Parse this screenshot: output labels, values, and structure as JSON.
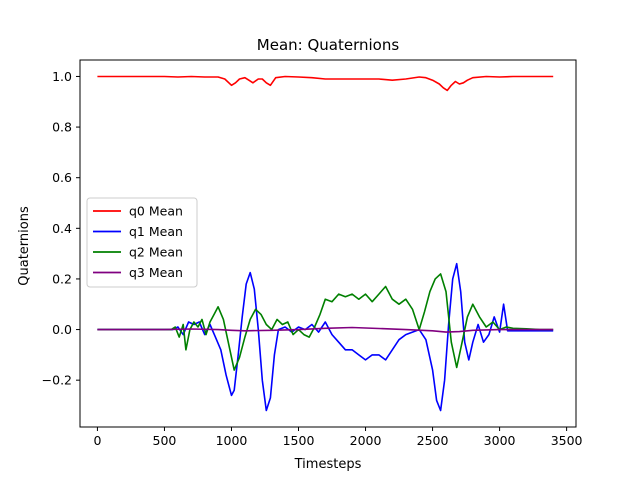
{
  "chart_data": {
    "type": "line",
    "title": "Mean: Quaternions",
    "xlabel": "Timesteps",
    "ylabel": "Quaternions",
    "xlim": [
      -130,
      3570
    ],
    "ylim": [
      -0.385,
      1.065
    ],
    "xticks": [
      0,
      500,
      1000,
      1500,
      2000,
      2500,
      3000,
      3500
    ],
    "yticks": [
      -0.2,
      0.0,
      0.2,
      0.4,
      0.6,
      0.8,
      1.0
    ],
    "xtick_labels": [
      "0",
      "500",
      "1000",
      "1500",
      "2000",
      "2500",
      "3000",
      "3500"
    ],
    "ytick_labels": [
      "−0.2",
      "0.0",
      "0.2",
      "0.4",
      "0.6",
      "0.8",
      "1.0"
    ],
    "grid": false,
    "legend_position": "center-left",
    "series": [
      {
        "name": "q0 Mean",
        "color": "#ff0000",
        "x": [
          0,
          500,
          600,
          700,
          800,
          900,
          950,
          1000,
          1030,
          1060,
          1100,
          1130,
          1160,
          1200,
          1230,
          1260,
          1290,
          1330,
          1400,
          1500,
          1600,
          1700,
          1800,
          1900,
          2000,
          2100,
          2200,
          2300,
          2400,
          2450,
          2500,
          2550,
          2580,
          2610,
          2640,
          2670,
          2700,
          2730,
          2760,
          2800,
          2900,
          3000,
          3100,
          3200,
          3300,
          3400
        ],
        "values": [
          1.0,
          1.0,
          0.998,
          1.0,
          0.998,
          0.998,
          0.99,
          0.965,
          0.975,
          0.99,
          0.995,
          0.985,
          0.975,
          0.99,
          0.99,
          0.975,
          0.965,
          0.995,
          1.0,
          0.998,
          0.995,
          0.99,
          0.99,
          0.99,
          0.99,
          0.99,
          0.985,
          0.99,
          0.998,
          0.995,
          0.985,
          0.97,
          0.955,
          0.945,
          0.965,
          0.98,
          0.97,
          0.975,
          0.985,
          0.995,
          1.0,
          0.998,
          1.0,
          1.0,
          1.0,
          1.0
        ]
      },
      {
        "name": "q1 Mean",
        "color": "#0000ff",
        "x": [
          0,
          300,
          560,
          600,
          640,
          680,
          720,
          760,
          800,
          840,
          880,
          920,
          960,
          1000,
          1020,
          1050,
          1080,
          1110,
          1140,
          1170,
          1200,
          1230,
          1260,
          1290,
          1320,
          1350,
          1400,
          1450,
          1500,
          1550,
          1600,
          1650,
          1700,
          1750,
          1800,
          1850,
          1900,
          1950,
          2000,
          2050,
          2100,
          2150,
          2200,
          2250,
          2300,
          2350,
          2400,
          2450,
          2500,
          2530,
          2560,
          2590,
          2620,
          2650,
          2680,
          2710,
          2740,
          2770,
          2800,
          2840,
          2880,
          2920,
          2960,
          3000,
          3030,
          3060,
          3100,
          3200,
          3300,
          3400
        ],
        "values": [
          0.0,
          0.0,
          0.0,
          0.01,
          -0.02,
          0.03,
          0.02,
          0.03,
          -0.02,
          0.02,
          -0.03,
          -0.08,
          -0.18,
          -0.26,
          -0.24,
          -0.1,
          0.05,
          0.18,
          0.225,
          0.16,
          0.0,
          -0.2,
          -0.32,
          -0.27,
          -0.1,
          0.0,
          0.01,
          -0.01,
          0.01,
          0.0,
          0.02,
          -0.01,
          0.03,
          -0.02,
          -0.05,
          -0.08,
          -0.08,
          -0.1,
          -0.12,
          -0.1,
          -0.1,
          -0.12,
          -0.08,
          -0.04,
          -0.02,
          -0.01,
          0.0,
          -0.04,
          -0.16,
          -0.28,
          -0.32,
          -0.2,
          0.02,
          0.2,
          0.26,
          0.15,
          -0.05,
          -0.12,
          -0.05,
          0.02,
          -0.05,
          -0.02,
          0.05,
          -0.01,
          0.1,
          -0.005,
          -0.005,
          -0.005,
          -0.005,
          -0.005
        ]
      },
      {
        "name": "q2 Mean",
        "color": "#008000",
        "x": [
          0,
          300,
          550,
          580,
          610,
          640,
          660,
          690,
          720,
          750,
          780,
          810,
          840,
          870,
          900,
          940,
          980,
          1020,
          1060,
          1100,
          1140,
          1180,
          1220,
          1260,
          1300,
          1340,
          1380,
          1420,
          1460,
          1500,
          1540,
          1580,
          1620,
          1660,
          1700,
          1750,
          1800,
          1850,
          1900,
          1950,
          2000,
          2050,
          2100,
          2150,
          2200,
          2250,
          2300,
          2350,
          2400,
          2440,
          2480,
          2520,
          2560,
          2600,
          2640,
          2680,
          2720,
          2760,
          2800,
          2850,
          2900,
          2950,
          3000,
          3050,
          3100,
          3200,
          3300,
          3400
        ],
        "values": [
          0.0,
          0.0,
          0.0,
          0.01,
          -0.03,
          0.02,
          -0.08,
          0.0,
          0.03,
          0.01,
          0.04,
          -0.02,
          0.03,
          0.06,
          0.09,
          0.04,
          -0.06,
          -0.16,
          -0.11,
          -0.03,
          0.04,
          0.08,
          0.06,
          0.02,
          0.0,
          0.04,
          0.02,
          0.03,
          -0.02,
          0.0,
          -0.02,
          -0.03,
          0.01,
          0.06,
          0.12,
          0.11,
          0.14,
          0.13,
          0.14,
          0.12,
          0.14,
          0.11,
          0.14,
          0.17,
          0.12,
          0.1,
          0.12,
          0.08,
          0.0,
          0.07,
          0.15,
          0.2,
          0.22,
          0.15,
          -0.05,
          -0.15,
          -0.05,
          0.05,
          0.1,
          0.05,
          0.01,
          0.03,
          0.0,
          0.01,
          0.005,
          0.003,
          0.0,
          0.0
        ]
      },
      {
        "name": "q3 Mean",
        "color": "#800080",
        "x": [
          0,
          500,
          700,
          900,
          1000,
          1100,
          1300,
          1500,
          1700,
          1900,
          2000,
          2100,
          2300,
          2500,
          2600,
          2700,
          2800,
          3000,
          3200,
          3400
        ],
        "values": [
          0.0,
          0.0,
          0.002,
          0.0,
          -0.003,
          -0.005,
          -0.003,
          0.0,
          0.005,
          0.008,
          0.006,
          0.004,
          0.0,
          -0.005,
          -0.01,
          -0.008,
          -0.003,
          0.0,
          0.0,
          0.0
        ]
      }
    ]
  }
}
